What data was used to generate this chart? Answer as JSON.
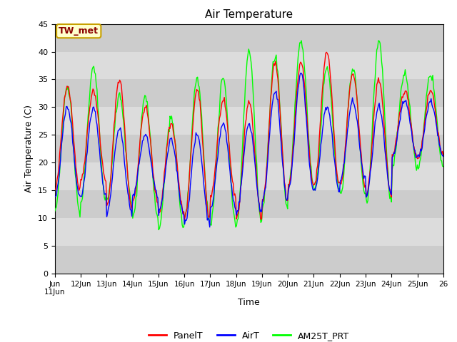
{
  "title": "Air Temperature",
  "ylabel": "Air Temperature (C)",
  "xlabel": "Time",
  "annotation": "TW_met",
  "ylim": [
    0,
    45
  ],
  "yticks": [
    0,
    5,
    10,
    15,
    20,
    25,
    30,
    35,
    40,
    45
  ],
  "x_tick_labels": [
    "Jun\n11Jun",
    "12Jun",
    "13Jun",
    "14Jun",
    "15Jun",
    "16Jun",
    "17Jun",
    "18Jun",
    "19Jun",
    "20Jun",
    "21Jun",
    "22Jun",
    "23Jun",
    "24Jun",
    "25Jun",
    "26"
  ],
  "legend_labels": [
    "PanelT",
    "AirT",
    "AM25T_PRT"
  ],
  "line_colors": [
    "red",
    "blue",
    "#00ff00"
  ],
  "plot_bg_color": "#e8e8e8",
  "stripe_light": "#dcdcdc",
  "stripe_dark": "#cccccc",
  "n_points": 480,
  "days": 15,
  "panel_peaks": [
    34,
    33,
    35,
    30,
    27,
    33,
    31,
    31,
    38,
    38,
    40,
    36,
    35,
    33,
    33
  ],
  "panel_troughs": [
    15,
    17,
    12,
    13,
    11,
    10,
    14,
    10,
    13,
    16,
    16,
    16,
    14,
    21,
    21
  ],
  "air_peaks": [
    30,
    30,
    26,
    25,
    24,
    25,
    27,
    27,
    33,
    36,
    30,
    31,
    30,
    31,
    31
  ],
  "air_troughs": [
    14,
    14,
    11,
    14,
    11,
    9,
    12,
    11,
    13,
    15,
    15,
    17,
    14,
    21,
    21
  ],
  "am25_peaks": [
    34,
    37,
    32,
    32,
    28,
    35,
    35,
    40,
    39,
    42,
    37,
    37,
    42,
    36,
    36
  ],
  "am25_troughs": [
    11,
    13,
    13,
    10,
    8,
    10,
    9,
    9,
    12,
    16,
    15,
    14,
    13,
    19,
    19
  ]
}
